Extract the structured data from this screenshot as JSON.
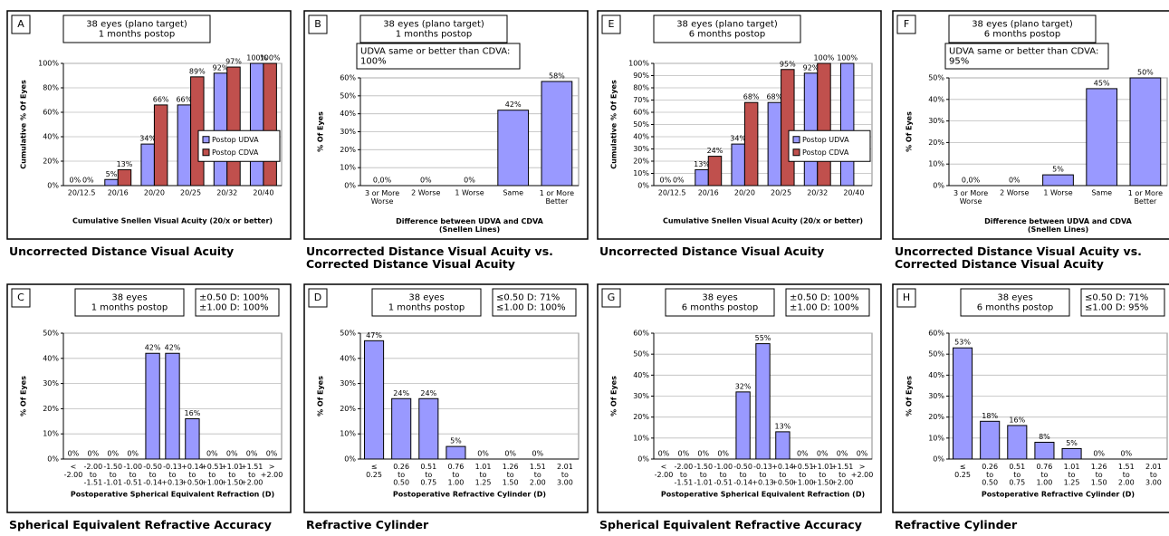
{
  "chart_data": [
    {
      "type": "bar",
      "panel": "A",
      "header": "38 eyes (plano target)\n1 months postop",
      "caption": "Uncorrected Distance Visual Acuity",
      "xlabel": "Cumulative Snellen Visual Acuity (20/x or better)",
      "ylabel": "Cumulative % Of Eyes",
      "categories": [
        "20/12.5",
        "20/16",
        "20/20",
        "20/25",
        "20/32",
        "20/40"
      ],
      "series": [
        {
          "name": "Postop UDVA",
          "color": "#9999ff",
          "values": [
            0,
            5,
            34,
            66,
            92,
            100
          ],
          "value_labels": [
            "0%",
            "5%",
            "34%",
            "66%",
            "92%",
            "100%"
          ]
        },
        {
          "name": "Postop CDVA",
          "color": "#c0504d",
          "values": [
            0,
            13,
            66,
            89,
            97,
            100
          ],
          "value_labels": [
            "0%",
            "13%",
            "66%",
            "89%",
            "97%",
            "100%"
          ]
        }
      ],
      "ylim": [
        0,
        100
      ],
      "yticks": [
        {
          "value": 0,
          "label": "0%"
        },
        {
          "value": 20,
          "label": "20%"
        },
        {
          "value": 40,
          "label": "40%"
        },
        {
          "value": 60,
          "label": "60%"
        },
        {
          "value": 80,
          "label": "80%"
        },
        {
          "value": 100,
          "label": "100%"
        }
      ],
      "grid": true,
      "legend": "right"
    },
    {
      "type": "bar",
      "panel": "B",
      "header": "38 eyes (plano target)\n1 months postop",
      "note": "UDVA same or better than CDVA:\n100%",
      "caption": "Uncorrected Distance Visual Acuity vs.\nCorrected Distance Visual Acuity",
      "xlabel": "Difference between  UDVA and CDVA\n(Snellen Lines)",
      "ylabel": "% Of Eyes",
      "categories": [
        "3 or More\nWorse",
        "2 Worse",
        "1 Worse",
        "Same",
        "1 or More\nBetter"
      ],
      "values": [
        0,
        0,
        0,
        42,
        58
      ],
      "value_labels": [
        "0,0%",
        "0%",
        "0%",
        "42%",
        "58%"
      ],
      "color": "#9999ff",
      "ylim": [
        0,
        60
      ],
      "yticks": [
        {
          "value": 0,
          "label": "0%"
        },
        {
          "value": 10,
          "label": "10%"
        },
        {
          "value": 20,
          "label": "20%"
        },
        {
          "value": 30,
          "label": "30%"
        },
        {
          "value": 40,
          "label": "40%"
        },
        {
          "value": 50,
          "label": "50%"
        },
        {
          "value": 60,
          "label": "60%"
        }
      ],
      "grid": true
    },
    {
      "type": "bar",
      "panel": "E",
      "header": "38 eyes (plano target)\n6 months postop",
      "caption": "Uncorrected Distance Visual Acuity",
      "xlabel": "Cumulative Snellen Visual Acuity (20/x or better)",
      "ylabel": "Cumulative % Of Eyes",
      "categories": [
        "20/12.5",
        "20/16",
        "20/20",
        "20/25",
        "20/32",
        "20/40"
      ],
      "series": [
        {
          "name": "Postop UDVA",
          "color": "#9999ff",
          "values": [
            0,
            13,
            34,
            68,
            92,
            100
          ],
          "value_labels": [
            "0%",
            "13%",
            "34%",
            "68%",
            "92%",
            "100%"
          ]
        },
        {
          "name": "Postop CDVA",
          "color": "#c0504d",
          "values": [
            0,
            24,
            68,
            95,
            100,
            null
          ],
          "value_labels": [
            "0%",
            "24%",
            "68%",
            "95%",
            "100%",
            null
          ]
        }
      ],
      "ylim": [
        0,
        100
      ],
      "yticks": [
        {
          "value": 0,
          "label": "0%"
        },
        {
          "value": 10,
          "label": "10%"
        },
        {
          "value": 20,
          "label": "20%"
        },
        {
          "value": 30,
          "label": "30%"
        },
        {
          "value": 40,
          "label": "40%"
        },
        {
          "value": 50,
          "label": "50%"
        },
        {
          "value": 60,
          "label": "60%"
        },
        {
          "value": 70,
          "label": "70%"
        },
        {
          "value": 80,
          "label": "80%"
        },
        {
          "value": 90,
          "label": "90%"
        },
        {
          "value": 100,
          "label": "100%"
        }
      ],
      "grid": true,
      "legend": "right"
    },
    {
      "type": "bar",
      "panel": "F",
      "header": "38 eyes (plano target)\n6 months postop",
      "note": "UDVA same or better than CDVA:\n95%",
      "caption": "Uncorrected Distance Visual Acuity vs.\nCorrected Distance Visual Acuity",
      "xlabel": "Difference between  UDVA and CDVA\n(Snellen Lines)",
      "ylabel": "% Of Eyes",
      "categories": [
        "3 or More\nWorse",
        "2 Worse",
        "1 Worse",
        "Same",
        "1 or More\nBetter"
      ],
      "values": [
        0,
        0,
        5,
        45,
        50
      ],
      "value_labels": [
        "0,0%",
        "0%",
        "5%",
        "45%",
        "50%"
      ],
      "color": "#9999ff",
      "ylim": [
        0,
        50
      ],
      "yticks": [
        {
          "value": 0,
          "label": "0%"
        },
        {
          "value": 10,
          "label": "10%"
        },
        {
          "value": 20,
          "label": "20%"
        },
        {
          "value": 30,
          "label": "30%"
        },
        {
          "value": 40,
          "label": "40%"
        },
        {
          "value": 50,
          "label": "50%"
        }
      ],
      "grid": true
    },
    {
      "type": "bar",
      "panel": "C",
      "header": "38 eyes\n1 months postop",
      "note": "±0.50 D: 100%\n±1.00 D: 100%",
      "caption": "Spherical Equivalent Refractive Accuracy",
      "xlabel": "Postoperative Spherical Equivalent Refraction (D)",
      "ylabel": "% Of Eyes",
      "categories": [
        "<\n-2.00",
        "-2.00\nto\n-1.51",
        "-1.50\nto\n-1.01",
        "-1.00\nto\n-0.51",
        "-0.50\nto\n-0.14",
        "-0.13\nto\n+0.13",
        "+0.14\nto\n+0.50",
        "+0.51\nto\n+1.00",
        "+1.01\nto\n+1.50",
        "+1.51\nto\n+2.00",
        ">\n+2.00"
      ],
      "values": [
        0,
        0,
        0,
        0,
        42,
        42,
        16,
        0,
        0,
        0,
        0
      ],
      "value_labels": [
        "0%",
        "0%",
        "0%",
        "0%",
        "42%",
        "42%",
        "16%",
        "0%",
        "0%",
        "0%",
        "0%"
      ],
      "color": "#9999ff",
      "ylim": [
        0,
        50
      ],
      "yticks": [
        {
          "value": 0,
          "label": "0%"
        },
        {
          "value": 10,
          "label": "10%"
        },
        {
          "value": 20,
          "label": "20%"
        },
        {
          "value": 30,
          "label": "30%"
        },
        {
          "value": 40,
          "label": "40%"
        },
        {
          "value": 50,
          "label": "50%"
        }
      ],
      "grid": true
    },
    {
      "type": "bar",
      "panel": "D",
      "header": "38 eyes\n1 months postop",
      "note": "≤0.50 D: 71%\n≤1.00 D: 100%",
      "caption": "Refractive Cylinder",
      "xlabel": "Postoperative Refractive Cylinder (D)",
      "ylabel": "% Of Eyes",
      "categories": [
        "≤\n0.25",
        "0.26\nto\n0.50",
        "0.51\nto\n0.75",
        "0.76\nto\n1.00",
        "1.01\nto\n1.25",
        "1.26\nto\n1.50",
        "1.51\nto\n2.00",
        "2.01\nto\n3.00"
      ],
      "values": [
        47,
        24,
        24,
        5,
        0,
        0,
        0,
        null
      ],
      "value_labels": [
        "47%",
        "24%",
        "24%",
        "5%",
        "0%",
        "0%",
        "0%",
        null
      ],
      "color": "#9999ff",
      "ylim": [
        0,
        50
      ],
      "yticks": [
        {
          "value": 0,
          "label": "0%"
        },
        {
          "value": 10,
          "label": "10%"
        },
        {
          "value": 20,
          "label": "20%"
        },
        {
          "value": 30,
          "label": "30%"
        },
        {
          "value": 40,
          "label": "40%"
        },
        {
          "value": 50,
          "label": "50%"
        }
      ],
      "grid": true
    },
    {
      "type": "bar",
      "panel": "G",
      "header": "38 eyes\n6 months postop",
      "note": "±0.50 D: 100%\n±1.00 D: 100%",
      "caption": "Spherical Equivalent Refractive Accuracy",
      "xlabel": "Postoperative Spherical Equivalent Refraction (D)",
      "ylabel": "% Of Eyes",
      "categories": [
        "<\n-2.00",
        "-2.00\nto\n-1.51",
        "-1.50\nto\n-1.01",
        "-1.00\nto\n-0.51",
        "-0.50\nto\n-0.14",
        "-0.13\nto\n+0.13",
        "+0.14\nto\n+0.50",
        "+0.51\nto\n+1.00",
        "+1.01\nto\n+1.50",
        "+1.51\nto\n+2.00",
        ">\n+2.00"
      ],
      "values": [
        0,
        0,
        0,
        0,
        32,
        55,
        13,
        0,
        0,
        0,
        0
      ],
      "value_labels": [
        "0%",
        "0%",
        "0%",
        "0%",
        "32%",
        "55%",
        "13%",
        "0%",
        "0%",
        "0%",
        "0%"
      ],
      "color": "#9999ff",
      "ylim": [
        0,
        60
      ],
      "yticks": [
        {
          "value": 0,
          "label": "0%"
        },
        {
          "value": 10,
          "label": "10%"
        },
        {
          "value": 20,
          "label": "20%"
        },
        {
          "value": 30,
          "label": "30%"
        },
        {
          "value": 40,
          "label": "40%"
        },
        {
          "value": 50,
          "label": "50%"
        },
        {
          "value": 60,
          "label": "60%"
        }
      ],
      "grid": true
    },
    {
      "type": "bar",
      "panel": "H",
      "header": "38 eyes\n6 months postop",
      "note": "≤0.50 D: 71%\n≤1.00 D: 95%",
      "caption": "Refractive Cylinder",
      "xlabel": "Postoperative Refractive Cylinder (D)",
      "ylabel": "% Of Eyes",
      "categories": [
        "≤\n0.25",
        "0.26\nto\n0.50",
        "0.51\nto\n0.75",
        "0.76\nto\n1.00",
        "1.01\nto\n1.25",
        "1.26\nto\n1.50",
        "1.51\nto\n2.00",
        "2.01\nto\n3.00"
      ],
      "values": [
        53,
        18,
        16,
        8,
        5,
        0,
        0,
        null
      ],
      "value_labels": [
        "53%",
        "18%",
        "16%",
        "8%",
        "5%",
        "0%",
        "0%",
        null
      ],
      "color": "#9999ff",
      "ylim": [
        0,
        60
      ],
      "yticks": [
        {
          "value": 0,
          "label": "0%"
        },
        {
          "value": 10,
          "label": "10%"
        },
        {
          "value": 20,
          "label": "20%"
        },
        {
          "value": 30,
          "label": "30%"
        },
        {
          "value": 40,
          "label": "40%"
        },
        {
          "value": 50,
          "label": "50%"
        },
        {
          "value": 60,
          "label": "60%"
        }
      ],
      "grid": true
    }
  ]
}
